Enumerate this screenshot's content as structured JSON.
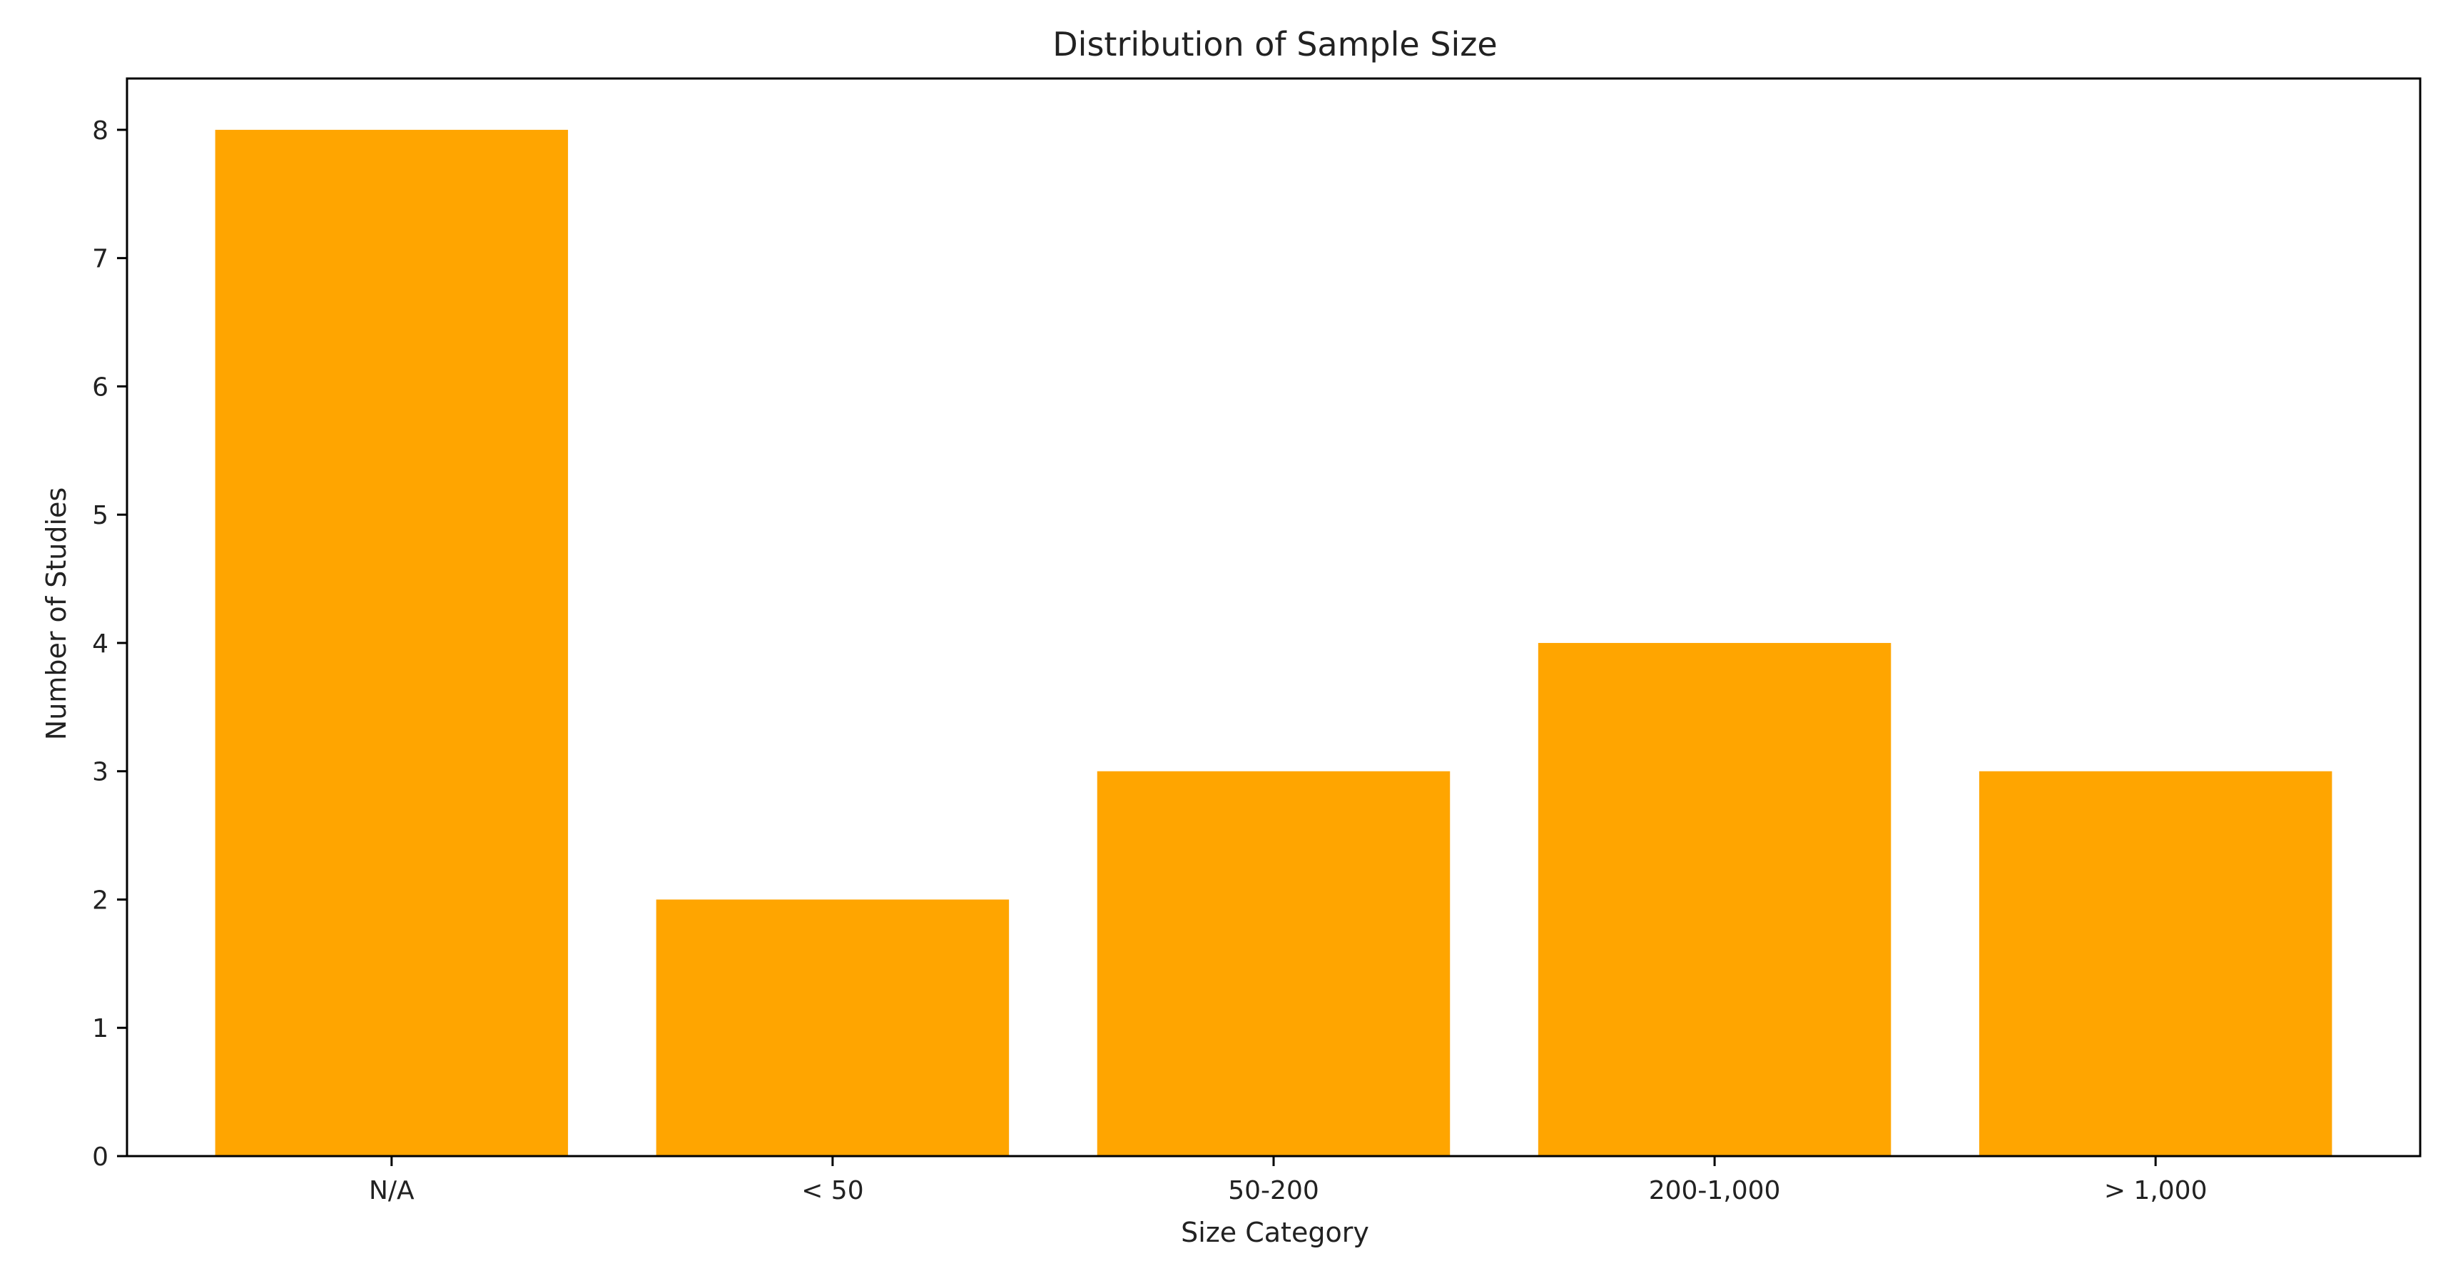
{
  "chart_data": {
    "type": "bar",
    "title": "Distribution of Sample Size",
    "xlabel": "Size Category",
    "ylabel": "Number of Studies",
    "categories": [
      "N/A",
      "< 50",
      "50-200",
      "200-1,000",
      "> 1,000"
    ],
    "values": [
      8,
      2,
      3,
      4,
      3
    ],
    "ylim": [
      0,
      8.4
    ],
    "yticks": [
      "0",
      "1",
      "2",
      "3",
      "4",
      "5",
      "6",
      "7",
      "8"
    ],
    "grid": false,
    "legend": "none",
    "bar_color": "#FFA500",
    "axis_color": "#000000"
  }
}
